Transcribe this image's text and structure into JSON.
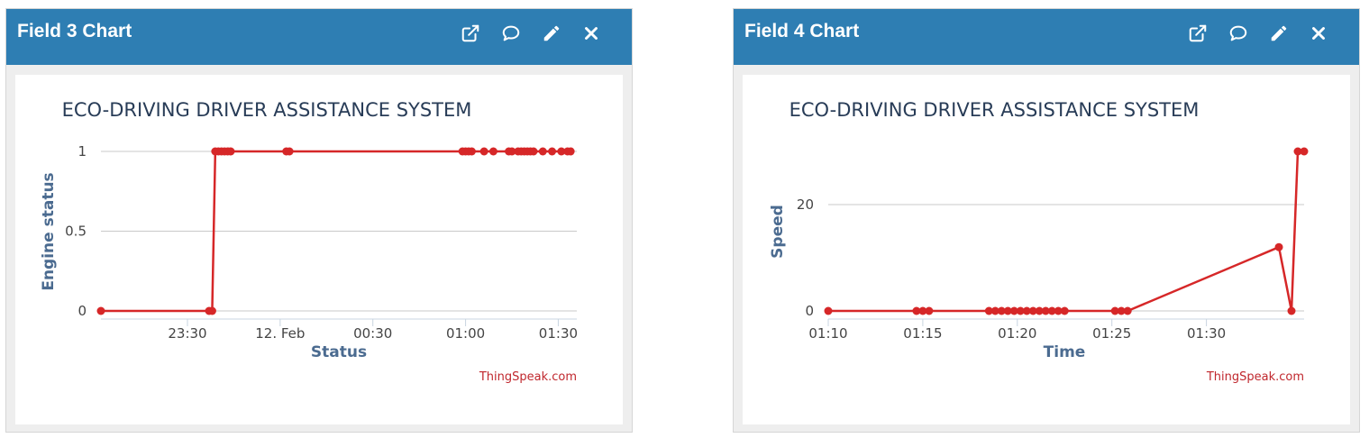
{
  "panels": [
    {
      "title": "Field 3 Chart",
      "icons": [
        "external-link-icon",
        "comment-icon",
        "pencil-icon",
        "close-icon"
      ],
      "chart_data": {
        "type": "line",
        "title": "ECO-DRIVING DRIVER ASSISTANCE SYSTEM",
        "xlabel": "Status",
        "ylabel": "Engine status",
        "x_ticks": [
          "23:30",
          "12. Feb",
          "00:30",
          "01:00",
          "01:30"
        ],
        "y_ticks": [
          "0",
          "0.5",
          "1"
        ],
        "ylim": [
          0,
          1
        ],
        "xlim": [
          "2024-02-11 23:02",
          "2024-02-12 01:36"
        ],
        "series": [
          {
            "color": "#d62728",
            "points": [
              {
                "x": "23:02",
                "y": 0
              },
              {
                "x": "23:37",
                "y": 0
              },
              {
                "x": "23:38",
                "y": 0
              },
              {
                "x": "23:39",
                "y": 1
              },
              {
                "x": "23:40",
                "y": 1
              },
              {
                "x": "23:41",
                "y": 1
              },
              {
                "x": "23:42",
                "y": 1
              },
              {
                "x": "23:43",
                "y": 1
              },
              {
                "x": "23:44",
                "y": 1
              },
              {
                "x": "00:02",
                "y": 1
              },
              {
                "x": "00:03",
                "y": 1
              },
              {
                "x": "00:59",
                "y": 1
              },
              {
                "x": "01:00",
                "y": 1
              },
              {
                "x": "01:01",
                "y": 1
              },
              {
                "x": "01:02",
                "y": 1
              },
              {
                "x": "01:06",
                "y": 1
              },
              {
                "x": "01:09",
                "y": 1
              },
              {
                "x": "01:14",
                "y": 1
              },
              {
                "x": "01:15",
                "y": 1
              },
              {
                "x": "01:17",
                "y": 1
              },
              {
                "x": "01:18",
                "y": 1
              },
              {
                "x": "01:19",
                "y": 1
              },
              {
                "x": "01:20",
                "y": 1
              },
              {
                "x": "01:21",
                "y": 1
              },
              {
                "x": "01:22",
                "y": 1
              },
              {
                "x": "01:25",
                "y": 1
              },
              {
                "x": "01:28",
                "y": 1
              },
              {
                "x": "01:31",
                "y": 1
              },
              {
                "x": "01:33",
                "y": 1
              },
              {
                "x": "01:34",
                "y": 1
              }
            ]
          }
        ],
        "credit": "ThingSpeak.com"
      }
    },
    {
      "title": "Field 4 Chart",
      "icons": [
        "external-link-icon",
        "comment-icon",
        "pencil-icon",
        "close-icon"
      ],
      "chart_data": {
        "type": "line",
        "title": "ECO-DRIVING DRIVER ASSISTANCE SYSTEM",
        "xlabel": "Time",
        "ylabel": "Speed",
        "x_ticks": [
          "01:10",
          "01:15",
          "01:20",
          "01:25",
          "01:30"
        ],
        "y_ticks": [
          "0",
          "20"
        ],
        "ylim": [
          0,
          30
        ],
        "xlim": [
          "01:10",
          "01:35"
        ],
        "series": [
          {
            "color": "#d62728",
            "points": [
              {
                "x": "01:10:00",
                "y": 0
              },
              {
                "x": "01:14:40",
                "y": 0
              },
              {
                "x": "01:15:00",
                "y": 0
              },
              {
                "x": "01:15:20",
                "y": 0
              },
              {
                "x": "01:18:30",
                "y": 0
              },
              {
                "x": "01:18:50",
                "y": 0
              },
              {
                "x": "01:19:10",
                "y": 0
              },
              {
                "x": "01:19:30",
                "y": 0
              },
              {
                "x": "01:19:50",
                "y": 0
              },
              {
                "x": "01:20:10",
                "y": 0
              },
              {
                "x": "01:20:30",
                "y": 0
              },
              {
                "x": "01:20:50",
                "y": 0
              },
              {
                "x": "01:21:10",
                "y": 0
              },
              {
                "x": "01:21:30",
                "y": 0
              },
              {
                "x": "01:21:50",
                "y": 0
              },
              {
                "x": "01:22:10",
                "y": 0
              },
              {
                "x": "01:22:30",
                "y": 0
              },
              {
                "x": "01:25:10",
                "y": 0
              },
              {
                "x": "01:25:30",
                "y": 0
              },
              {
                "x": "01:25:50",
                "y": 0
              },
              {
                "x": "01:33:50",
                "y": 12
              },
              {
                "x": "01:34:30",
                "y": 0
              },
              {
                "x": "01:34:50",
                "y": 30
              },
              {
                "x": "01:35:10",
                "y": 30
              }
            ]
          }
        ],
        "credit": "ThingSpeak.com"
      }
    }
  ]
}
